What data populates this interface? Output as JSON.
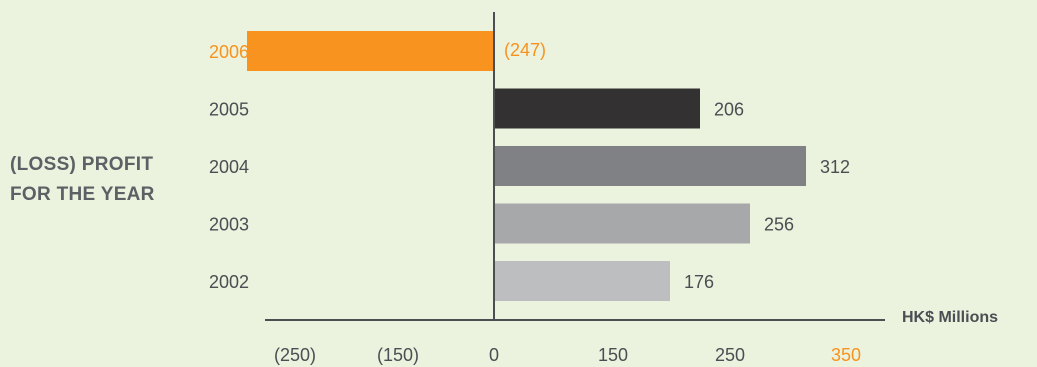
{
  "chart_data": {
    "type": "bar",
    "orientation": "horizontal",
    "title": "",
    "side_title_lines": [
      "(LOSS) PROFIT",
      "FOR THE YEAR"
    ],
    "unit_label": "HK$ Millions",
    "categories": [
      "2006",
      "2005",
      "2004",
      "2003",
      "2002"
    ],
    "values": [
      -247,
      206,
      312,
      256,
      176
    ],
    "data_labels": [
      "(247)",
      "206",
      "312",
      "256",
      "176"
    ],
    "bar_colors": [
      "#f7931e",
      "#333132",
      "#808184",
      "#a7a8aa",
      "#bdbec0"
    ],
    "highlight_color": "#f7931e",
    "label_color": "#4b4e52",
    "x_ticks": [
      {
        "value": -250,
        "label": "(250)"
      },
      {
        "value": -150,
        "label": "(150)"
      },
      {
        "value": 0,
        "label": "0"
      },
      {
        "value": 150,
        "label": "150"
      },
      {
        "value": 250,
        "label": "250"
      },
      {
        "value": 350,
        "label": "350"
      }
    ],
    "highlight_tick": "350",
    "grid": false,
    "legend": "none"
  }
}
